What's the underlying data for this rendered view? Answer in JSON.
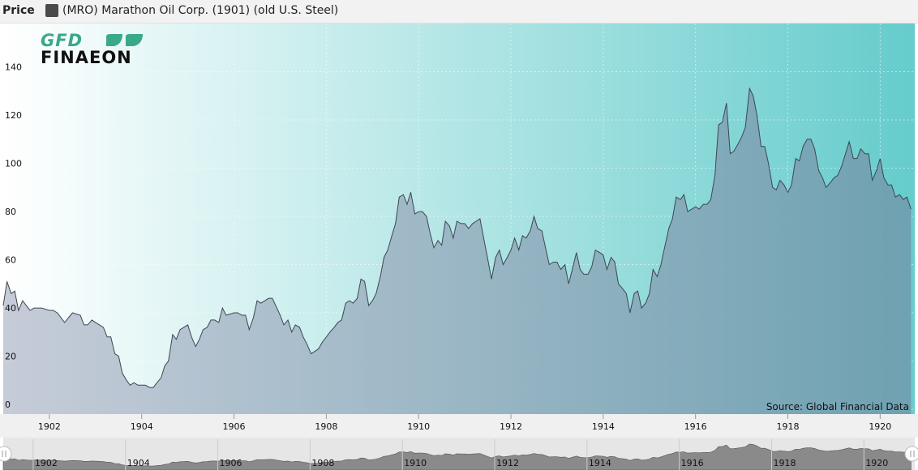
{
  "header": {
    "price_label": "Price",
    "legend_label": "(MRO) Marathon Oil Corp. (1901) (old U.S. Steel)",
    "legend_color": "#4a4a4a"
  },
  "logo": {
    "top": "GFD",
    "bottom": "FINAEON"
  },
  "source": "Source: Global Financial Data",
  "colors": {
    "area_fill": "#6e8fa3",
    "line": "#3d4650",
    "bg_left": "#ffffff",
    "bg_right": "#66cccc",
    "navigator_fill": "#8a8a8a"
  },
  "chart_data": {
    "type": "area",
    "title": "",
    "xlabel": "",
    "ylabel": "",
    "xlim": [
      1901.0,
      1920.75
    ],
    "ylim": [
      0,
      160
    ],
    "yticks": [
      0,
      20,
      40,
      60,
      80,
      100,
      120,
      140
    ],
    "xticks": [
      1902,
      1904,
      1906,
      1908,
      1910,
      1912,
      1914,
      1916,
      1918,
      1920
    ],
    "grid": true,
    "legend": "top-left",
    "series": [
      {
        "name": "(MRO) Marathon Oil Corp. (1901) (old U.S. Steel)",
        "points": [
          [
            1901.0,
            43
          ],
          [
            1901.08,
            53
          ],
          [
            1901.17,
            48
          ],
          [
            1901.25,
            49
          ],
          [
            1901.33,
            41
          ],
          [
            1901.42,
            45
          ],
          [
            1901.58,
            41
          ],
          [
            1901.67,
            42
          ],
          [
            1901.83,
            42
          ],
          [
            1902.0,
            41
          ],
          [
            1902.08,
            41
          ],
          [
            1902.17,
            40
          ],
          [
            1902.33,
            36
          ],
          [
            1902.5,
            40
          ],
          [
            1902.67,
            39
          ],
          [
            1902.75,
            35
          ],
          [
            1902.83,
            35
          ],
          [
            1902.92,
            37
          ],
          [
            1903.0,
            36
          ],
          [
            1903.17,
            34
          ],
          [
            1903.25,
            30
          ],
          [
            1903.33,
            30
          ],
          [
            1903.42,
            23
          ],
          [
            1903.5,
            22
          ],
          [
            1903.58,
            15
          ],
          [
            1903.67,
            12
          ],
          [
            1903.75,
            10
          ],
          [
            1903.83,
            11
          ],
          [
            1903.92,
            10
          ],
          [
            1904.0,
            10
          ],
          [
            1904.08,
            10
          ],
          [
            1904.17,
            9
          ],
          [
            1904.25,
            9
          ],
          [
            1904.33,
            11
          ],
          [
            1904.42,
            13
          ],
          [
            1904.5,
            18
          ],
          [
            1904.58,
            20
          ],
          [
            1904.67,
            31
          ],
          [
            1904.75,
            29
          ],
          [
            1904.83,
            33
          ],
          [
            1905.0,
            35
          ],
          [
            1905.08,
            30
          ],
          [
            1905.17,
            26
          ],
          [
            1905.25,
            29
          ],
          [
            1905.33,
            33
          ],
          [
            1905.42,
            34
          ],
          [
            1905.5,
            37
          ],
          [
            1905.58,
            37
          ],
          [
            1905.67,
            36
          ],
          [
            1905.75,
            42
          ],
          [
            1905.83,
            39
          ],
          [
            1906.0,
            40
          ],
          [
            1906.08,
            40
          ],
          [
            1906.17,
            39
          ],
          [
            1906.25,
            39
          ],
          [
            1906.33,
            33
          ],
          [
            1906.42,
            38
          ],
          [
            1906.5,
            45
          ],
          [
            1906.58,
            44
          ],
          [
            1906.67,
            45
          ],
          [
            1906.75,
            46
          ],
          [
            1906.83,
            46
          ],
          [
            1907.0,
            39
          ],
          [
            1907.08,
            35
          ],
          [
            1907.17,
            37
          ],
          [
            1907.25,
            32
          ],
          [
            1907.33,
            35
          ],
          [
            1907.42,
            34
          ],
          [
            1907.5,
            30
          ],
          [
            1907.58,
            27
          ],
          [
            1907.67,
            23
          ],
          [
            1907.75,
            24
          ],
          [
            1907.83,
            25
          ],
          [
            1907.92,
            28
          ],
          [
            1908.0,
            30
          ],
          [
            1908.08,
            32
          ],
          [
            1908.17,
            34
          ],
          [
            1908.25,
            36
          ],
          [
            1908.33,
            37
          ],
          [
            1908.42,
            44
          ],
          [
            1908.5,
            45
          ],
          [
            1908.58,
            44
          ],
          [
            1908.67,
            46
          ],
          [
            1908.75,
            54
          ],
          [
            1908.83,
            53
          ],
          [
            1908.92,
            43
          ],
          [
            1909.0,
            45
          ],
          [
            1909.08,
            48
          ],
          [
            1909.17,
            55
          ],
          [
            1909.25,
            63
          ],
          [
            1909.33,
            66
          ],
          [
            1909.42,
            72
          ],
          [
            1909.5,
            77
          ],
          [
            1909.58,
            88
          ],
          [
            1909.67,
            89
          ],
          [
            1909.75,
            85
          ],
          [
            1909.83,
            90
          ],
          [
            1909.92,
            81
          ],
          [
            1910.0,
            82
          ],
          [
            1910.08,
            82
          ],
          [
            1910.17,
            80
          ],
          [
            1910.25,
            73
          ],
          [
            1910.33,
            67
          ],
          [
            1910.42,
            70
          ],
          [
            1910.5,
            68
          ],
          [
            1910.58,
            78
          ],
          [
            1910.67,
            76
          ],
          [
            1910.75,
            71
          ],
          [
            1910.83,
            78
          ],
          [
            1910.92,
            77
          ],
          [
            1911.0,
            77
          ],
          [
            1911.08,
            75
          ],
          [
            1911.17,
            77
          ],
          [
            1911.25,
            78
          ],
          [
            1911.33,
            79
          ],
          [
            1911.42,
            70
          ],
          [
            1911.5,
            62
          ],
          [
            1911.58,
            54
          ],
          [
            1911.67,
            63
          ],
          [
            1911.75,
            66
          ],
          [
            1911.83,
            60
          ],
          [
            1911.92,
            63
          ],
          [
            1912.0,
            66
          ],
          [
            1912.08,
            71
          ],
          [
            1912.17,
            66
          ],
          [
            1912.25,
            72
          ],
          [
            1912.33,
            71
          ],
          [
            1912.42,
            74
          ],
          [
            1912.5,
            80
          ],
          [
            1912.58,
            75
          ],
          [
            1912.67,
            74
          ],
          [
            1912.75,
            67
          ],
          [
            1912.83,
            60
          ],
          [
            1912.92,
            61
          ],
          [
            1913.0,
            61
          ],
          [
            1913.08,
            58
          ],
          [
            1913.17,
            60
          ],
          [
            1913.25,
            52
          ],
          [
            1913.33,
            58
          ],
          [
            1913.42,
            65
          ],
          [
            1913.5,
            58
          ],
          [
            1913.58,
            56
          ],
          [
            1913.67,
            56
          ],
          [
            1913.75,
            59
          ],
          [
            1913.83,
            66
          ],
          [
            1913.92,
            65
          ],
          [
            1914.0,
            64
          ],
          [
            1914.08,
            58
          ],
          [
            1914.17,
            63
          ],
          [
            1914.25,
            61
          ],
          [
            1914.33,
            52
          ],
          [
            1914.42,
            50
          ],
          [
            1914.5,
            48
          ],
          [
            1914.58,
            40
          ],
          [
            1914.67,
            48
          ],
          [
            1914.75,
            49
          ],
          [
            1914.83,
            42
          ],
          [
            1914.92,
            44
          ],
          [
            1915.0,
            48
          ],
          [
            1915.08,
            58
          ],
          [
            1915.17,
            55
          ],
          [
            1915.25,
            60
          ],
          [
            1915.33,
            67
          ],
          [
            1915.42,
            75
          ],
          [
            1915.5,
            79
          ],
          [
            1915.58,
            88
          ],
          [
            1915.67,
            87
          ],
          [
            1915.75,
            89
          ],
          [
            1915.83,
            82
          ],
          [
            1915.92,
            83
          ],
          [
            1916.0,
            84
          ],
          [
            1916.08,
            83
          ],
          [
            1916.17,
            85
          ],
          [
            1916.25,
            85
          ],
          [
            1916.33,
            87
          ],
          [
            1916.42,
            97
          ],
          [
            1916.5,
            118
          ],
          [
            1916.58,
            119
          ],
          [
            1916.67,
            127
          ],
          [
            1916.75,
            106
          ],
          [
            1916.83,
            107
          ],
          [
            1916.92,
            110
          ],
          [
            1917.0,
            113
          ],
          [
            1917.08,
            117
          ],
          [
            1917.17,
            133
          ],
          [
            1917.25,
            130
          ],
          [
            1917.33,
            122
          ],
          [
            1917.42,
            109
          ],
          [
            1917.5,
            109
          ],
          [
            1917.58,
            102
          ],
          [
            1917.67,
            92
          ],
          [
            1917.75,
            91
          ],
          [
            1917.83,
            95
          ],
          [
            1917.92,
            93
          ],
          [
            1918.0,
            90
          ],
          [
            1918.08,
            93
          ],
          [
            1918.17,
            104
          ],
          [
            1918.25,
            103
          ],
          [
            1918.33,
            109
          ],
          [
            1918.42,
            112
          ],
          [
            1918.5,
            112
          ],
          [
            1918.58,
            108
          ],
          [
            1918.67,
            99
          ],
          [
            1918.75,
            96
          ],
          [
            1918.83,
            92
          ],
          [
            1918.92,
            94
          ],
          [
            1919.0,
            96
          ],
          [
            1919.08,
            97
          ],
          [
            1919.17,
            101
          ],
          [
            1919.25,
            106
          ],
          [
            1919.33,
            111
          ],
          [
            1919.42,
            104
          ],
          [
            1919.5,
            104
          ],
          [
            1919.58,
            108
          ],
          [
            1919.67,
            106
          ],
          [
            1919.75,
            106
          ],
          [
            1919.83,
            95
          ],
          [
            1919.92,
            99
          ],
          [
            1920.0,
            104
          ],
          [
            1920.08,
            96
          ],
          [
            1920.17,
            93
          ],
          [
            1920.25,
            93
          ],
          [
            1920.33,
            88
          ],
          [
            1920.42,
            89
          ],
          [
            1920.5,
            87
          ],
          [
            1920.58,
            88
          ],
          [
            1920.67,
            83
          ]
        ]
      }
    ]
  }
}
